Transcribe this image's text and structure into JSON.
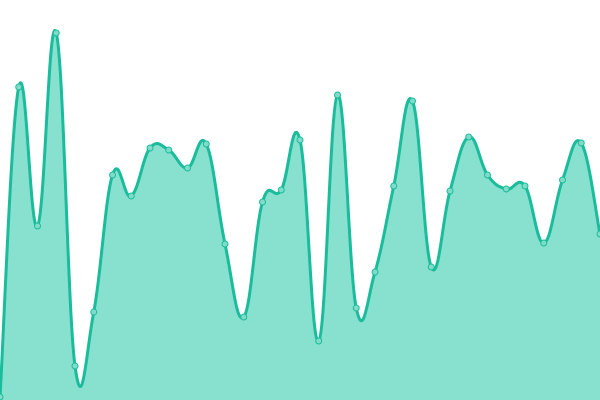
{
  "chart_data": {
    "type": "area",
    "smooth": true,
    "markers": true,
    "grid": false,
    "axes_visible": false,
    "legend": "none",
    "ylim": [
      0,
      400
    ],
    "x": [
      0,
      1,
      2,
      3,
      4,
      5,
      6,
      7,
      8,
      9,
      10,
      11,
      12,
      13,
      14,
      15,
      16,
      17,
      18,
      19,
      20,
      21,
      22,
      23,
      24,
      25,
      26,
      27,
      28,
      29,
      30,
      31,
      32
    ],
    "values": [
      3,
      313,
      174,
      367,
      34,
      88,
      225,
      204,
      252,
      250,
      232,
      256,
      156,
      83,
      198,
      210,
      260,
      59,
      305,
      92,
      128,
      214,
      299,
      133,
      209,
      263,
      225,
      211,
      214,
      157,
      220,
      257,
      166
    ],
    "colors": {
      "line": "#1abc9c",
      "fill": "#88e0cf",
      "marker_fill": "#7fdcc8",
      "marker_stroke": "#1abc9c"
    }
  }
}
